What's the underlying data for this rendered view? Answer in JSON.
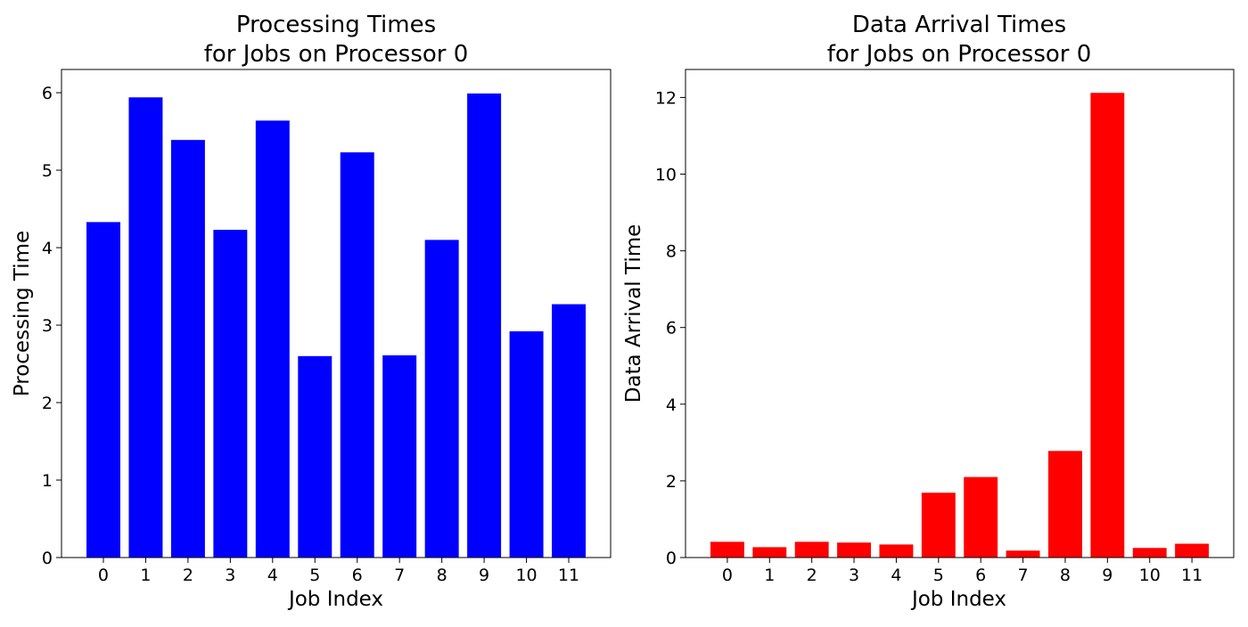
{
  "chart_data": [
    {
      "type": "bar",
      "title_lines": [
        "Processing Times",
        "for Jobs on Processor 0"
      ],
      "xlabel": "Job Index",
      "ylabel": "Processing Time",
      "categories": [
        "0",
        "1",
        "2",
        "3",
        "4",
        "5",
        "6",
        "7",
        "8",
        "9",
        "10",
        "11"
      ],
      "values": [
        4.33,
        5.94,
        5.39,
        4.23,
        5.64,
        2.6,
        5.23,
        2.61,
        4.1,
        5.99,
        2.92,
        3.27
      ],
      "ylim": [
        0,
        6.3
      ],
      "yticks": [
        0,
        1,
        2,
        3,
        4,
        5,
        6
      ],
      "color": "#0000ff",
      "grid": false,
      "legend": "none"
    },
    {
      "type": "bar",
      "title_lines": [
        "Data Arrival Times",
        "for Jobs on Processor 0"
      ],
      "xlabel": "Job Index",
      "ylabel": "Data Arrival Time",
      "categories": [
        "0",
        "1",
        "2",
        "3",
        "4",
        "5",
        "6",
        "7",
        "8",
        "9",
        "10",
        "11"
      ],
      "values": [
        0.41,
        0.27,
        0.41,
        0.39,
        0.34,
        1.69,
        2.1,
        0.18,
        2.78,
        12.12,
        0.25,
        0.36
      ],
      "ylim": [
        0,
        12.73
      ],
      "yticks": [
        0,
        2,
        4,
        6,
        8,
        10,
        12
      ],
      "color": "#ff0000",
      "grid": false,
      "legend": "none"
    }
  ]
}
